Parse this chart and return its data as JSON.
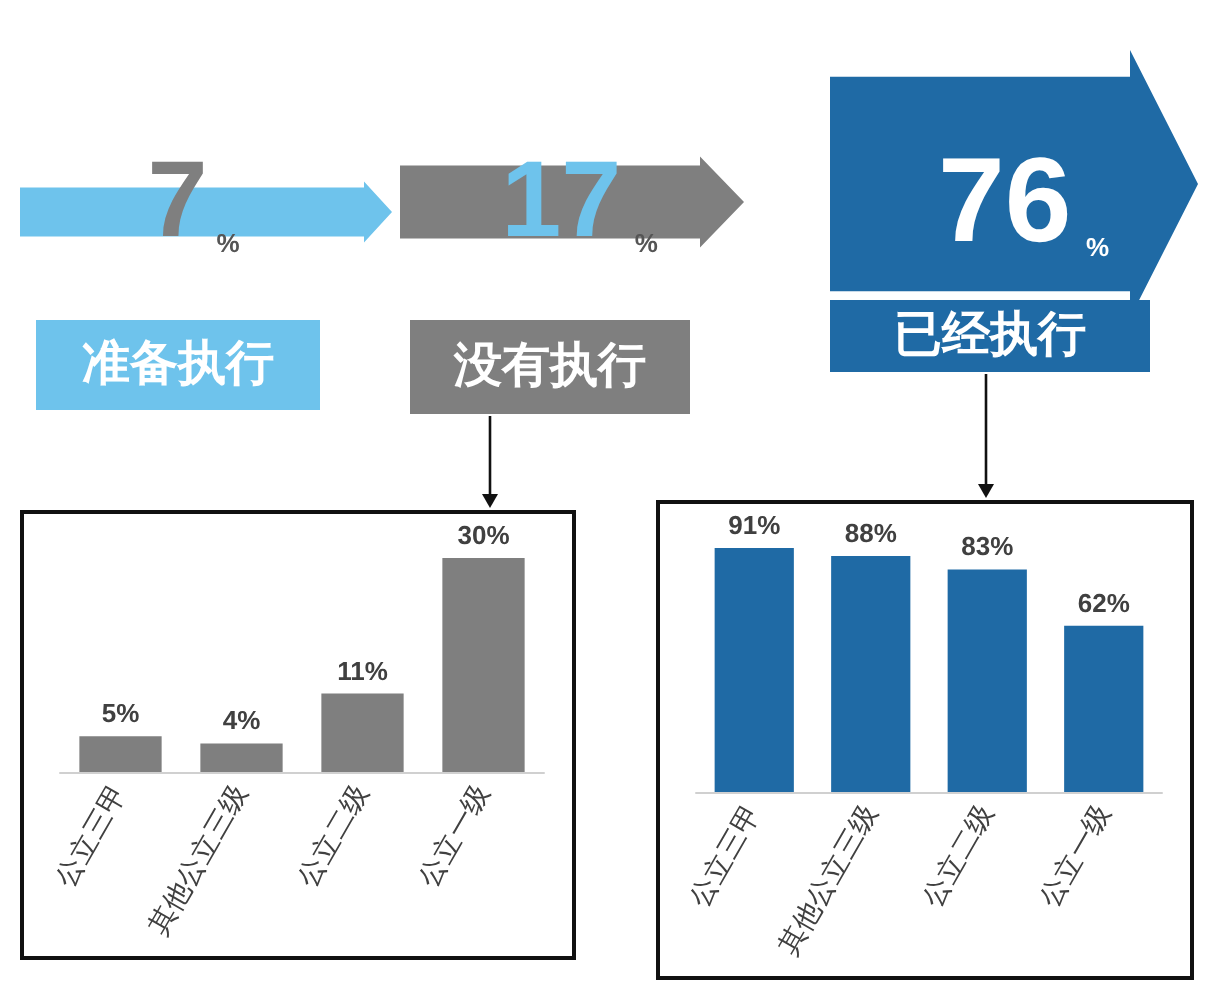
{
  "chart_data": [
    {
      "type": "other",
      "categories": [
        "准备执行",
        "没有执行",
        "已经执行"
      ],
      "values": [
        7,
        17,
        76
      ],
      "value_labels": [
        "7%",
        "17%",
        "76%"
      ],
      "colors": [
        "#6ec3ec",
        "#7f7f7f",
        "#1f6aa5"
      ]
    },
    {
      "type": "bar",
      "categories": [
        "公立三甲",
        "其他公立三级",
        "公立二级",
        "公立一级"
      ],
      "values": [
        5,
        4,
        11,
        30
      ],
      "color": "#7f7f7f",
      "value_labels": [
        "5%",
        "4%",
        "11%",
        "30%"
      ]
    },
    {
      "type": "bar",
      "categories": [
        "公立三甲",
        "其他公立三级",
        "公立二级",
        "公立一级"
      ],
      "values": [
        91,
        88,
        83,
        62
      ],
      "color": "#1f6aa5",
      "value_labels": [
        "91%",
        "88%",
        "83%",
        "62%"
      ]
    }
  ]
}
